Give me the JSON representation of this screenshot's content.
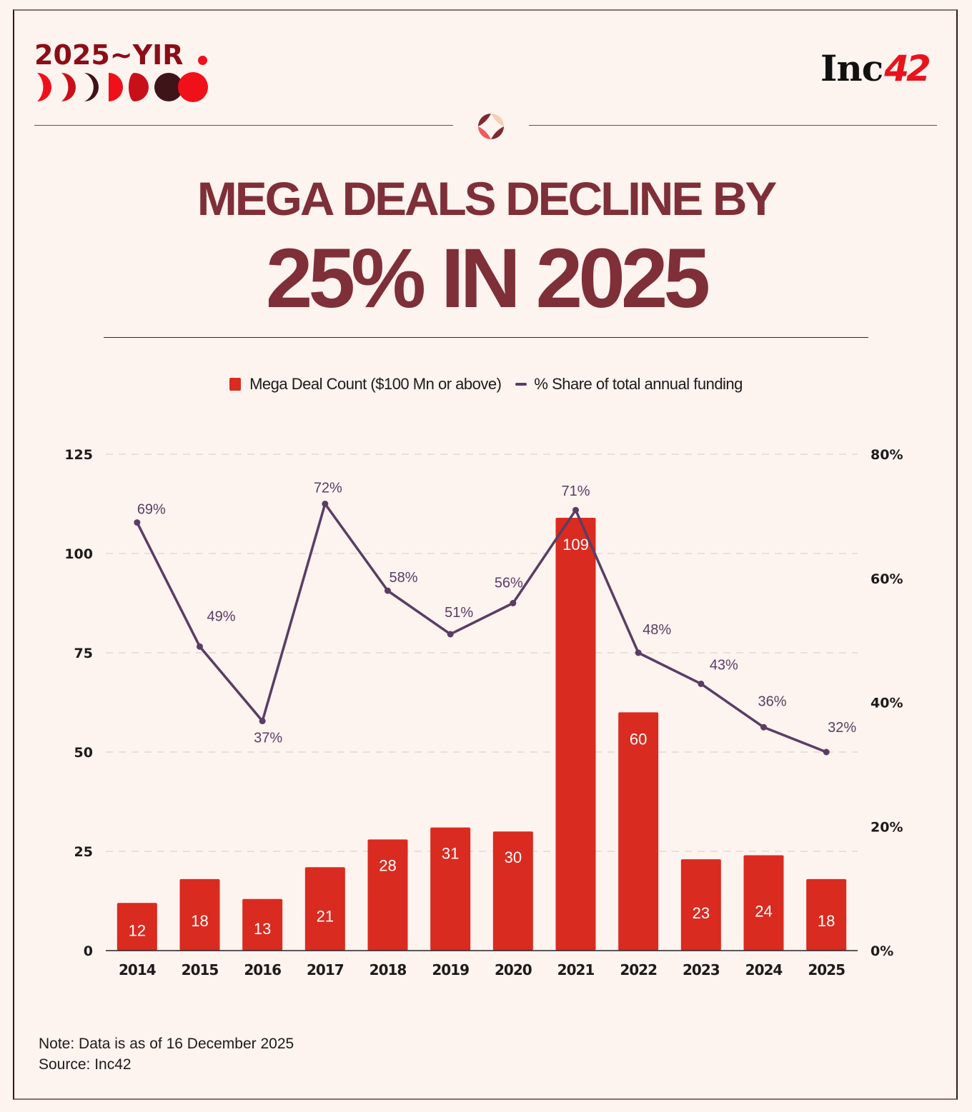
{
  "brand": {
    "series_title": "2025~YIR",
    "publisher": "Inc",
    "publisher_num": "42"
  },
  "headline": {
    "line1": "MEGA DEALS DECLINE BY",
    "line2": "25% IN 2025"
  },
  "colors": {
    "background": "#fdf3ef",
    "bar": "#d92b20",
    "line": "#5a3d63",
    "headline": "#7e2f38",
    "brand_dark": "#8b0e17",
    "brand_red": "#e8141c"
  },
  "chart_data": {
    "type": "bar",
    "title": "Mega Deals Decline By 25% In 2025",
    "categories": [
      "2014",
      "2015",
      "2016",
      "2017",
      "2018",
      "2019",
      "2020",
      "2021",
      "2022",
      "2023",
      "2024",
      "2025"
    ],
    "series": [
      {
        "name": "Mega Deal Count ($100 Mn or above)",
        "type": "bar",
        "axis": "left",
        "values": [
          12,
          18,
          13,
          21,
          28,
          31,
          30,
          109,
          60,
          23,
          24,
          18
        ],
        "labels": [
          "12",
          "18",
          "13",
          "21",
          "28",
          "31",
          "30",
          "109",
          "60",
          "23",
          "24",
          "18"
        ]
      },
      {
        "name": "% Share of total annual funding",
        "type": "line",
        "axis": "right",
        "values": [
          69,
          49,
          37,
          72,
          58,
          51,
          56,
          71,
          48,
          43,
          36,
          32
        ],
        "labels": [
          "69%",
          "49%",
          "37%",
          "72%",
          "58%",
          "51%",
          "56%",
          "71%",
          "48%",
          "43%",
          "36%",
          "32%"
        ]
      }
    ],
    "left_axis": {
      "ylim": [
        0,
        125
      ],
      "ticks": [
        0,
        25,
        50,
        75,
        100,
        125
      ],
      "tick_labels": [
        "0",
        "25",
        "50",
        "75",
        "100",
        "125"
      ]
    },
    "right_axis": {
      "ylim": [
        0,
        80
      ],
      "ticks": [
        0,
        20,
        40,
        60,
        80
      ],
      "tick_labels": [
        "0%",
        "20%",
        "40%",
        "60%",
        "80%"
      ]
    },
    "xlabel": "",
    "ylabel": "",
    "grid": "horizontal dashed",
    "legend": "top-center"
  },
  "legend": {
    "bar_label": "Mega Deal Count ($100 Mn or above)",
    "line_label": "% Share of total annual funding"
  },
  "footer": {
    "note": "Note: Data is as of 16 December 2025",
    "source": "Source: Inc42"
  }
}
